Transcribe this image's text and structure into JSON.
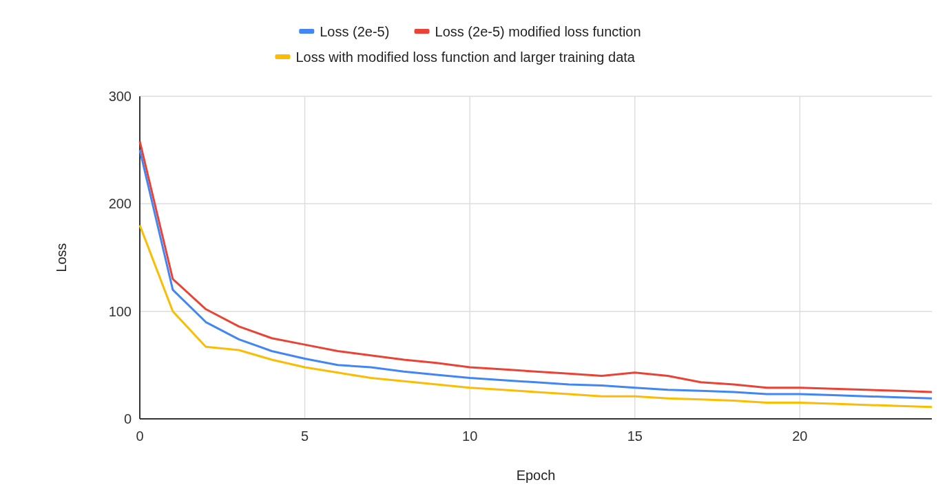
{
  "chart_data": {
    "type": "line",
    "xlabel": "Epoch",
    "ylabel": "Loss",
    "x": [
      0,
      1,
      2,
      3,
      4,
      5,
      6,
      7,
      8,
      9,
      10,
      11,
      12,
      13,
      14,
      15,
      16,
      17,
      18,
      19,
      20,
      21,
      22,
      23,
      24
    ],
    "series": [
      {
        "name": "Loss (2e-5)",
        "color": "#4285f4",
        "values": [
          250,
          120,
          90,
          74,
          63,
          56,
          50,
          48,
          44,
          41,
          38,
          36,
          34,
          32,
          31,
          29,
          27,
          26,
          25,
          23,
          23,
          22,
          21,
          20,
          19
        ]
      },
      {
        "name": "Loss (2e-5) modified loss function",
        "color": "#ea4335",
        "values": [
          258,
          130,
          102,
          86,
          75,
          69,
          63,
          59,
          55,
          52,
          48,
          46,
          44,
          42,
          40,
          43,
          40,
          34,
          32,
          29,
          29,
          28,
          27,
          26,
          25
        ]
      },
      {
        "name": "Loss with modified loss function and larger training data",
        "color": "#fbbc04",
        "values": [
          180,
          100,
          67,
          64,
          55,
          48,
          43,
          38,
          35,
          32,
          29,
          27,
          25,
          23,
          21,
          21,
          19,
          18,
          17,
          15,
          15,
          14,
          13,
          12,
          11
        ]
      }
    ],
    "xlim": [
      0,
      24
    ],
    "xticks": [
      0,
      5,
      10,
      15,
      20
    ],
    "ylim": [
      0,
      300
    ],
    "yticks": [
      0,
      100,
      200,
      300
    ],
    "grid": true,
    "legend": "top",
    "marker": "none",
    "line_style": "solid"
  }
}
